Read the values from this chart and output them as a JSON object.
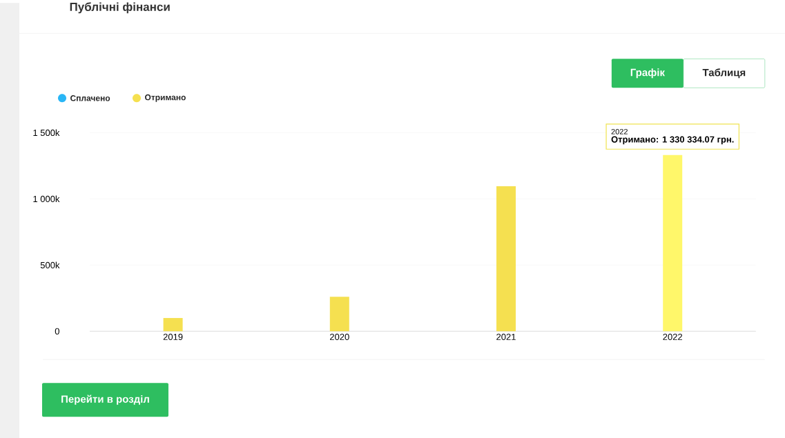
{
  "chart_data": {
    "type": "bar",
    "title": "Публічні фінанси",
    "categories": [
      "2019",
      "2020",
      "2021",
      "2022"
    ],
    "series": [
      {
        "name": "Сплачено",
        "color": "#29b6f6",
        "values": [
          0,
          0,
          0,
          0
        ]
      },
      {
        "name": "Отримано",
        "colors": [
          "#f5e050",
          "#f5e050",
          "#f5e050",
          "#fff76a"
        ],
        "values": [
          100000,
          260000,
          1095000,
          1330334.07
        ]
      }
    ],
    "ylim": [
      0,
      1500000
    ],
    "yticks": [
      {
        "value": 0,
        "label": "0"
      },
      {
        "value": 500000,
        "label": "500k"
      },
      {
        "value": 1000000,
        "label": "1 000k"
      },
      {
        "value": 1500000,
        "label": "1 500k"
      }
    ],
    "grid": "y",
    "legend": "top left",
    "annotations": [
      "2022",
      {
        "text": "Отримано: 1 330 334.07 грн.",
        "x": "2022",
        "y": 1330334.07
      },
      "Графік",
      "Таблиця",
      "Перейти в розділ"
    ]
  }
}
